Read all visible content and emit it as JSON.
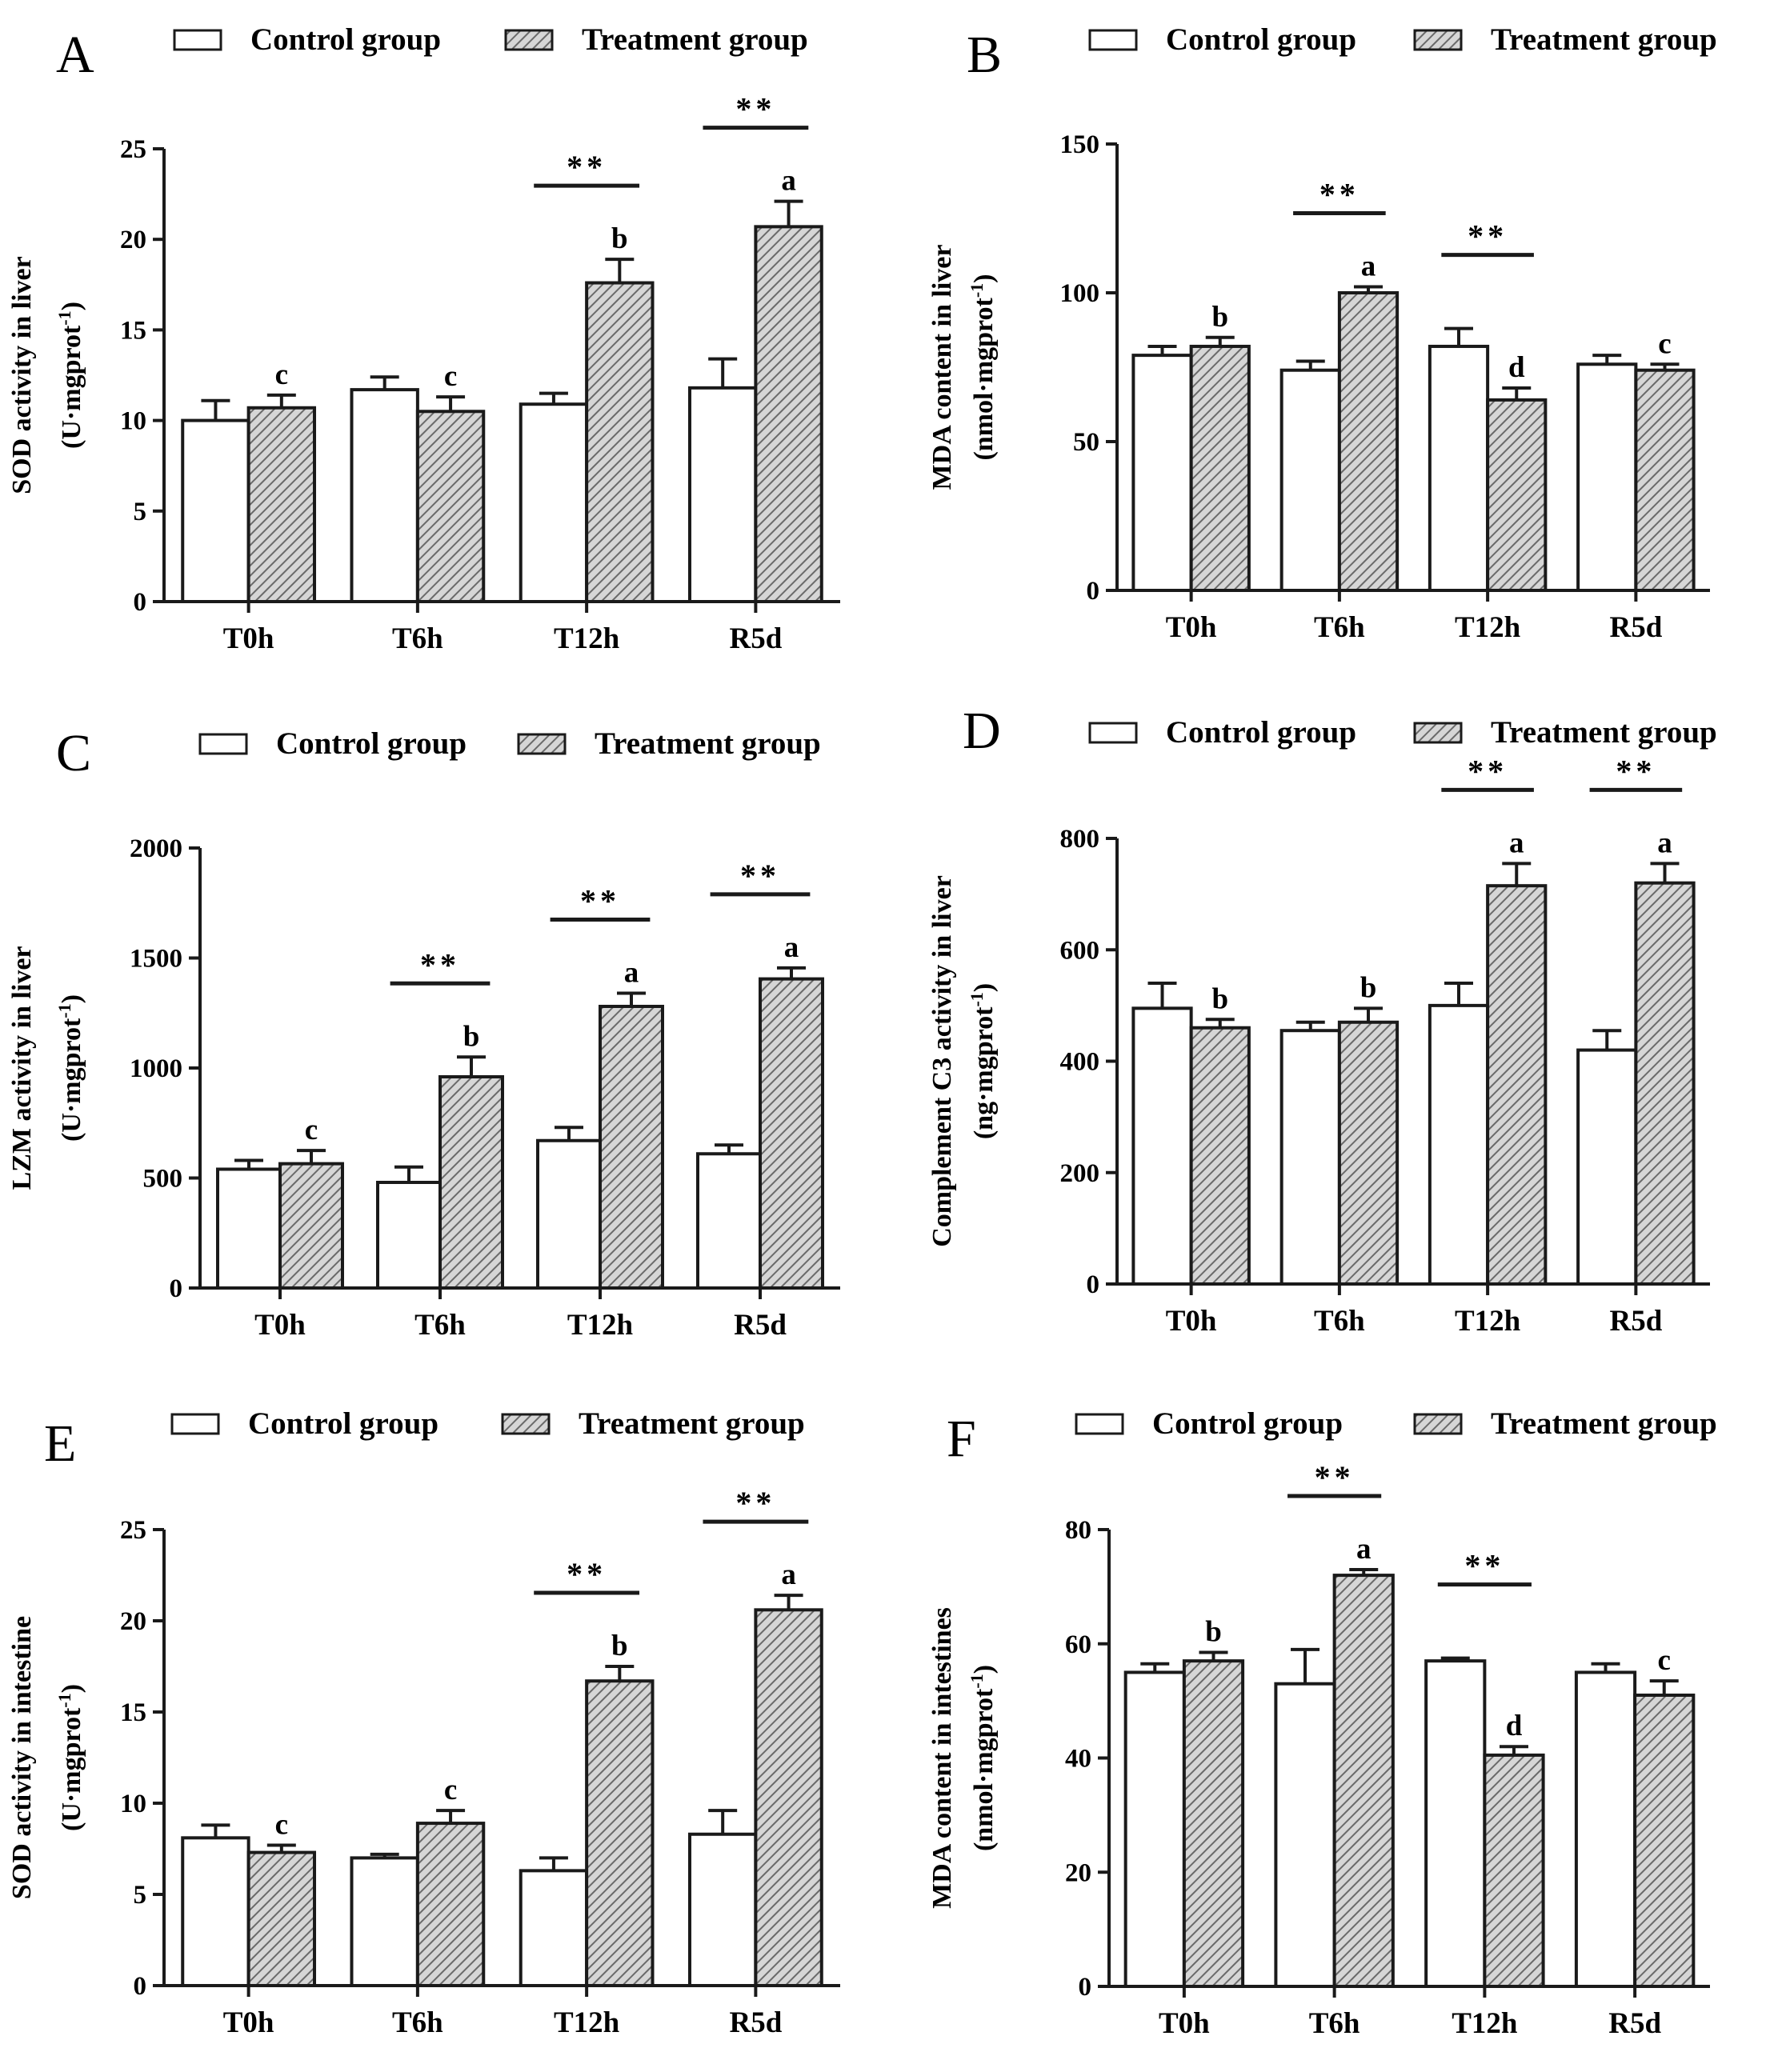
{
  "chart_data": [
    {
      "type": "bar",
      "panel": "A",
      "legend": [
        "Control group",
        "Treatment group"
      ],
      "ylabel_lines": [
        "SOD activity in liver",
        "(U·mgprot",
        "-1",
        ")"
      ],
      "y_ticks": [
        "0",
        "5",
        "10",
        "15",
        "20",
        "25"
      ],
      "ylim": [
        0,
        25
      ],
      "categories": [
        "T0h",
        "T6h",
        "T12h",
        "R5d"
      ],
      "series": [
        {
          "name": "Control group",
          "values": [
            10.0,
            11.7,
            10.9,
            11.8
          ],
          "errors": [
            1.1,
            0.7,
            0.6,
            1.6
          ]
        },
        {
          "name": "Treatment group",
          "values": [
            10.7,
            10.5,
            17.6,
            20.7
          ],
          "errors": [
            0.7,
            0.8,
            1.3,
            1.4
          ]
        }
      ],
      "letters": [
        "c",
        "c",
        "b",
        "a"
      ],
      "significance": [
        "",
        "",
        "**",
        "**"
      ]
    },
    {
      "type": "bar",
      "panel": "B",
      "legend": [
        "Control group",
        "Treatment group"
      ],
      "ylabel_lines": [
        "MDA content in liver",
        "(nmol·mgprot",
        "-1",
        ")"
      ],
      "y_ticks": [
        "0",
        "50",
        "100",
        "150"
      ],
      "ylim": [
        0,
        150
      ],
      "categories": [
        "T0h",
        "T6h",
        "T12h",
        "R5d"
      ],
      "series": [
        {
          "name": "Control group",
          "values": [
            79,
            74,
            82,
            76
          ],
          "errors": [
            3,
            3,
            6,
            3
          ]
        },
        {
          "name": "Treatment group",
          "values": [
            82,
            100,
            64,
            74
          ],
          "errors": [
            3,
            2,
            4,
            2
          ]
        }
      ],
      "letters": [
        "b",
        "a",
        "d",
        "c"
      ],
      "significance": [
        "",
        "**",
        "**",
        ""
      ]
    },
    {
      "type": "bar",
      "panel": "C",
      "legend": [
        "Control group",
        "Treatment group"
      ],
      "ylabel_lines": [
        "LZM activity in liver",
        "(U·mgprot",
        "-1",
        ")"
      ],
      "y_ticks": [
        "0",
        "500",
        "1000",
        "1500",
        "2000"
      ],
      "ylim": [
        0,
        2000
      ],
      "categories": [
        "T0h",
        "T6h",
        "T12h",
        "R5d"
      ],
      "series": [
        {
          "name": "Control group",
          "values": [
            540,
            480,
            670,
            610
          ],
          "errors": [
            40,
            70,
            60,
            40
          ]
        },
        {
          "name": "Treatment group",
          "values": [
            565,
            960,
            1280,
            1405
          ],
          "errors": [
            60,
            90,
            60,
            50
          ]
        }
      ],
      "letters": [
        "c",
        "b",
        "a",
        "a"
      ],
      "significance": [
        "",
        "**",
        "**",
        "**"
      ]
    },
    {
      "type": "bar",
      "panel": "D",
      "legend": [
        "Control group",
        "Treatment group"
      ],
      "ylabel_lines": [
        "Complement C3 activity in liver",
        "(ng·mgprot",
        "-1",
        ")"
      ],
      "y_ticks": [
        "0",
        "200",
        "400",
        "600",
        "800"
      ],
      "ylim": [
        0,
        800
      ],
      "categories": [
        "T0h",
        "T6h",
        "T12h",
        "R5d"
      ],
      "series": [
        {
          "name": "Control group",
          "values": [
            495,
            455,
            500,
            420
          ],
          "errors": [
            45,
            15,
            40,
            35
          ]
        },
        {
          "name": "Treatment group",
          "values": [
            460,
            470,
            715,
            720
          ],
          "errors": [
            15,
            25,
            40,
            35
          ]
        }
      ],
      "letters": [
        "b",
        "b",
        "a",
        "a"
      ],
      "significance": [
        "",
        "",
        "**",
        "**"
      ]
    },
    {
      "type": "bar",
      "panel": "E",
      "legend": [
        "Control group",
        "Treatment group"
      ],
      "ylabel_lines": [
        "SOD activity in intestine",
        "(U·mgprot",
        "-1",
        ")"
      ],
      "y_ticks": [
        "0",
        "5",
        "10",
        "15",
        "20",
        "25"
      ],
      "ylim": [
        0,
        25
      ],
      "categories": [
        "T0h",
        "T6h",
        "T12h",
        "R5d"
      ],
      "series": [
        {
          "name": "Control group",
          "values": [
            8.1,
            7.0,
            6.3,
            8.3
          ],
          "errors": [
            0.7,
            0.2,
            0.7,
            1.3
          ]
        },
        {
          "name": "Treatment group",
          "values": [
            7.3,
            8.9,
            16.7,
            20.6
          ],
          "errors": [
            0.4,
            0.7,
            0.8,
            0.8
          ]
        }
      ],
      "letters": [
        "c",
        "c",
        "b",
        "a"
      ],
      "significance": [
        "",
        "",
        "**",
        "**"
      ]
    },
    {
      "type": "bar",
      "panel": "F",
      "legend": [
        "Control group",
        "Treatment group"
      ],
      "ylabel_lines": [
        "MDA content in intestines",
        "(nmol·mgprot",
        "-1",
        ")"
      ],
      "y_ticks": [
        "0",
        "20",
        "40",
        "60",
        "80"
      ],
      "ylim": [
        0,
        80
      ],
      "categories": [
        "T0h",
        "T6h",
        "T12h",
        "R5d"
      ],
      "series": [
        {
          "name": "Control group",
          "values": [
            55,
            53,
            57,
            55
          ],
          "errors": [
            1.5,
            6,
            0.5,
            1.5
          ]
        },
        {
          "name": "Treatment group",
          "values": [
            57,
            72,
            40.5,
            51
          ],
          "errors": [
            1.5,
            1,
            1.5,
            2.5
          ]
        }
      ],
      "letters": [
        "b",
        "a",
        "d",
        "c"
      ],
      "significance": [
        "",
        "**",
        "**",
        ""
      ]
    }
  ],
  "colors": {
    "control_fill": "#ffffff",
    "treatment_fill": "#b3b3b3",
    "axis": "#1a1a1a",
    "text": "#000000"
  }
}
